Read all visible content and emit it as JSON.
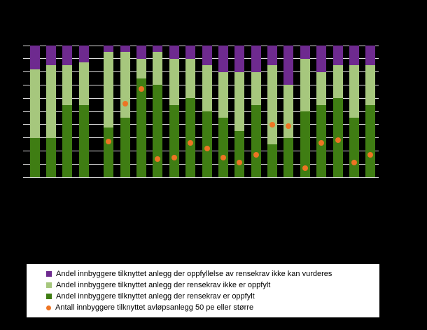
{
  "colors": {
    "background": "#000000",
    "dark_green": "#3f7d13",
    "light_green": "#a6c77d",
    "purple": "#6e2a8f",
    "orange": "#ee7423",
    "gridline": "#dcdcdc",
    "legend_bg": "#ffffff",
    "legend_text": "#000000"
  },
  "legend": {
    "items": [
      {
        "swatch": "purple",
        "shape": "square",
        "label": "Andel innbyggere tilknyttet anlegg der oppfyllelse av rensekrav ikke kan vurderes"
      },
      {
        "swatch": "light_green",
        "shape": "square",
        "label": "Andel innbyggere tilknyttet anlegg der rensekrav ikke er oppfylt"
      },
      {
        "swatch": "dark_green",
        "shape": "square",
        "label": "Andel innbyggere tilknyttet anlegg der rensekrav er oppfylt"
      },
      {
        "swatch": "orange",
        "shape": "circle",
        "label": "Antall innbyggere tilknyttet avløpsanlegg 50 pe eller større"
      }
    ]
  },
  "chart_data": {
    "type": "bar",
    "stacked": true,
    "orientation": "vertical",
    "ylim": [
      0,
      100
    ],
    "gridlines": [
      0,
      10,
      20,
      30,
      40,
      50,
      60,
      70,
      80,
      90,
      100
    ],
    "categories": [
      "",
      "",
      "",
      "",
      "",
      "",
      "",
      "",
      "",
      "",
      "",
      "",
      "",
      "",
      "",
      "",
      "",
      "",
      "",
      "",
      ""
    ],
    "group_gap_after": 4,
    "series": [
      {
        "name": "Andel innbyggere tilknyttet anlegg der rensekrav er oppfylt",
        "color_key": "dark_green",
        "values": [
          30,
          30,
          55,
          55,
          38,
          45,
          75,
          70,
          55,
          60,
          50,
          45,
          35,
          55,
          25,
          30,
          50,
          55,
          60,
          45,
          55
        ]
      },
      {
        "name": "Andel innbyggere tilknyttet anlegg der rensekrav ikke er oppfylt",
        "color_key": "light_green",
        "values": [
          52,
          55,
          30,
          32,
          57,
          50,
          15,
          25,
          35,
          30,
          35,
          35,
          45,
          25,
          60,
          40,
          40,
          25,
          25,
          40,
          30
        ]
      },
      {
        "name": "Andel innbyggere tilknyttet anlegg der oppfyllelse av rensekrav ikke kan vurderes",
        "color_key": "purple",
        "values": [
          18,
          15,
          15,
          13,
          5,
          5,
          10,
          5,
          10,
          10,
          15,
          20,
          20,
          20,
          15,
          30,
          10,
          20,
          15,
          15,
          15
        ]
      }
    ],
    "dot_series": {
      "name": "Antall innbyggere tilknyttet avløpsanlegg 50 pe eller større",
      "color_key": "orange",
      "axis": "secondary",
      "unit": "pct_of_axis_height",
      "values": [
        null,
        null,
        null,
        null,
        27,
        56,
        67,
        14,
        15,
        26,
        22,
        15,
        11,
        17,
        40,
        39,
        7,
        26,
        28,
        11,
        17
      ]
    }
  }
}
